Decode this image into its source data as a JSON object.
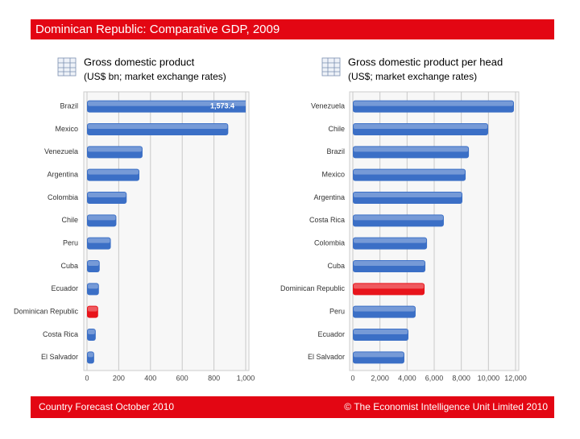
{
  "header": {
    "title": "Dominican Republic: Comparative GDP, 2009"
  },
  "footer": {
    "left": "Country Forecast October 2010",
    "right": "© The Economist Intelligence Unit Limited 2010"
  },
  "chart_data": [
    {
      "type": "bar",
      "orientation": "horizontal",
      "title": "Gross domestic product",
      "subtitle": "(US$ bn; market exchange rates)",
      "categories": [
        "Brazil",
        "Mexico",
        "Venezuela",
        "Argentina",
        "Colombia",
        "Chile",
        "Peru",
        "Cuba",
        "Ecuador",
        "Dominican Republic",
        "Costa Rica",
        "El Salvador"
      ],
      "values": [
        1573.4,
        890,
        350,
        330,
        250,
        185,
        150,
        80,
        75,
        70,
        55,
        45
      ],
      "value_labels": [
        "1,573.4",
        null,
        null,
        null,
        null,
        null,
        null,
        null,
        null,
        null,
        null,
        null
      ],
      "colors": [
        "#3b6fc6",
        "#3b6fc6",
        "#3b6fc6",
        "#3b6fc6",
        "#3b6fc6",
        "#3b6fc6",
        "#3b6fc6",
        "#3b6fc6",
        "#3b6fc6",
        "#e8141b",
        "#3b6fc6",
        "#3b6fc6"
      ],
      "xlim": [
        0,
        1000
      ],
      "xticks": [
        0,
        200,
        400,
        600,
        800,
        {
          "value": 1000,
          "label": "1,000"
        }
      ],
      "grid": true
    },
    {
      "type": "bar",
      "orientation": "horizontal",
      "title": "Gross domestic product per head",
      "subtitle": "(US$; market exchange rates)",
      "categories": [
        "Venezuela",
        "Chile",
        "Brazil",
        "Mexico",
        "Argentina",
        "Costa Rica",
        "Colombia",
        "Cuba",
        "Dominican Republic",
        "Peru",
        "Ecuador",
        "El Salvador"
      ],
      "values": [
        11880,
        9980,
        8560,
        8320,
        8080,
        6710,
        5470,
        5350,
        5290,
        4630,
        4100,
        3800
      ],
      "colors": [
        "#3b6fc6",
        "#3b6fc6",
        "#3b6fc6",
        "#3b6fc6",
        "#3b6fc6",
        "#3b6fc6",
        "#3b6fc6",
        "#3b6fc6",
        "#e8141b",
        "#3b6fc6",
        "#3b6fc6",
        "#3b6fc6"
      ],
      "xlim": [
        0,
        12000
      ],
      "xticks": [
        0,
        {
          "value": 2000,
          "label": "2,000"
        },
        {
          "value": 4000,
          "label": "4,000"
        },
        {
          "value": 6000,
          "label": "6,000"
        },
        {
          "value": 8000,
          "label": "8,000"
        },
        {
          "value": 10000,
          "label": "10,000"
        },
        {
          "value": 12000,
          "label": "12,000"
        }
      ],
      "grid": true
    }
  ]
}
